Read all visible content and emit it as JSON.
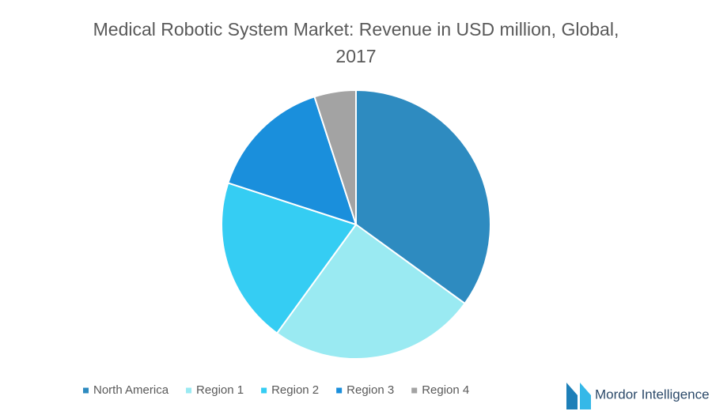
{
  "chart_data": {
    "type": "pie",
    "title": "Medical Robotic System Market: Revenue in USD million, Global, 2017",
    "categories": [
      "North America",
      "Region 1",
      "Region 2",
      "Region 3",
      "Region 4"
    ],
    "values": [
      35,
      25,
      20,
      15,
      5
    ],
    "colors": [
      "#2e8bc0",
      "#9aeaf2",
      "#35cdf3",
      "#1a8fdc",
      "#a3a3a3"
    ],
    "legend": "bottom"
  },
  "logo": {
    "text": "Mordor Intelligence"
  }
}
